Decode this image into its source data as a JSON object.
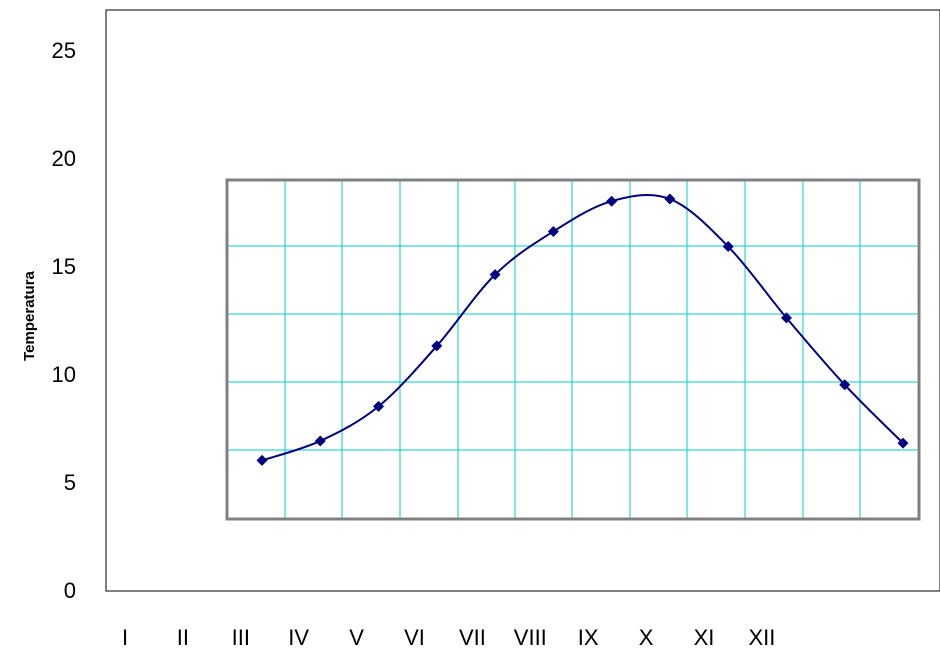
{
  "chart_data": {
    "type": "line",
    "title": "",
    "xlabel": "",
    "ylabel": "Temperatura",
    "ylim": [
      0,
      25
    ],
    "y_ticks": [
      "0",
      "5",
      "10",
      "15",
      "20",
      "25"
    ],
    "categories": [
      "I",
      "II",
      "III",
      "IV",
      "V",
      "VI",
      "VII",
      "VIII",
      "IX",
      "X",
      "XI",
      "XII"
    ],
    "series": [
      {
        "values": [
          6.0,
          6.9,
          8.5,
          11.3,
          14.6,
          16.6,
          18.0,
          18.1,
          15.9,
          12.6,
          9.5,
          6.8
        ],
        "color": "#000080",
        "marker": "diamond",
        "smooth": true
      }
    ],
    "grid": true,
    "grid_color": "#00cccc",
    "legend": "none"
  }
}
